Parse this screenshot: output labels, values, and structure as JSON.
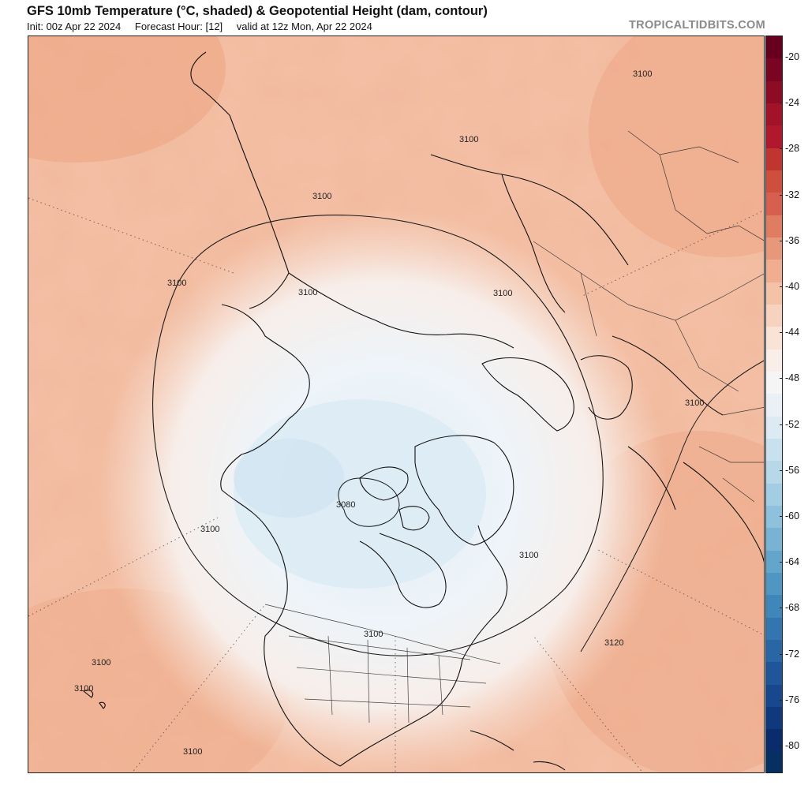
{
  "header": {
    "title": "GFS 10mb Temperature (°C, shaded) & Geopotential Height (dam, contour)",
    "init": "Init: 00z Apr 22 2024",
    "forecast_hour": "Forecast Hour: [12]",
    "valid": "valid at 12z Mon, Apr 22 2024",
    "brand": "TROPICALTIDBITS.COM"
  },
  "map": {
    "projection": "north-polar-stereographic",
    "contour_labels": [
      {
        "text": "3100",
        "region": "chukotka"
      },
      {
        "text": "3100",
        "region": "yamal"
      },
      {
        "text": "3100",
        "region": "europe-north"
      },
      {
        "text": "3100",
        "region": "siberia"
      },
      {
        "text": "3100",
        "region": "scandinavia"
      },
      {
        "text": "3100",
        "region": "asia-east"
      },
      {
        "text": "3100",
        "region": "mongolia"
      },
      {
        "text": "3100",
        "region": "atlantic-west"
      },
      {
        "text": "3080",
        "region": "canadian-arctic"
      },
      {
        "text": "3100",
        "region": "labrador"
      },
      {
        "text": "3100",
        "region": "great-lakes"
      },
      {
        "text": "3100",
        "region": "north-africa"
      },
      {
        "text": "3100",
        "region": "north-africa-west"
      },
      {
        "text": "3100",
        "region": "caribbean-east"
      },
      {
        "text": "3120",
        "region": "pacific-west"
      },
      {
        "text": "3120",
        "region": "pacific-central"
      }
    ]
  },
  "colorbar": {
    "ticks": [
      "-20",
      "-24",
      "-28",
      "-32",
      "-36",
      "-40",
      "-44",
      "-48",
      "-52",
      "-56",
      "-60",
      "-64",
      "-68",
      "-72",
      "-76",
      "-80"
    ],
    "segments": [
      "#67001f",
      "#7a0522",
      "#8e0b25",
      "#a2132a",
      "#b2182b",
      "#c0352f",
      "#cd4f3c",
      "#d6604d",
      "#e07d60",
      "#e8987a",
      "#f0ad8f",
      "#f4c2a6",
      "#f7d3bf",
      "#f9e2d6",
      "#f9eee8",
      "#f5f5f5",
      "#eaf1f6",
      "#dbeaf3",
      "#c9e1ee",
      "#b7d8e9",
      "#a3cde3",
      "#8ec1dc",
      "#78b3d4",
      "#63a5cb",
      "#4f96c2",
      "#3f86ba",
      "#3275b0",
      "#2866a6",
      "#1f569a",
      "#17478c",
      "#10397d",
      "#0a2c6c",
      "#053061"
    ]
  }
}
